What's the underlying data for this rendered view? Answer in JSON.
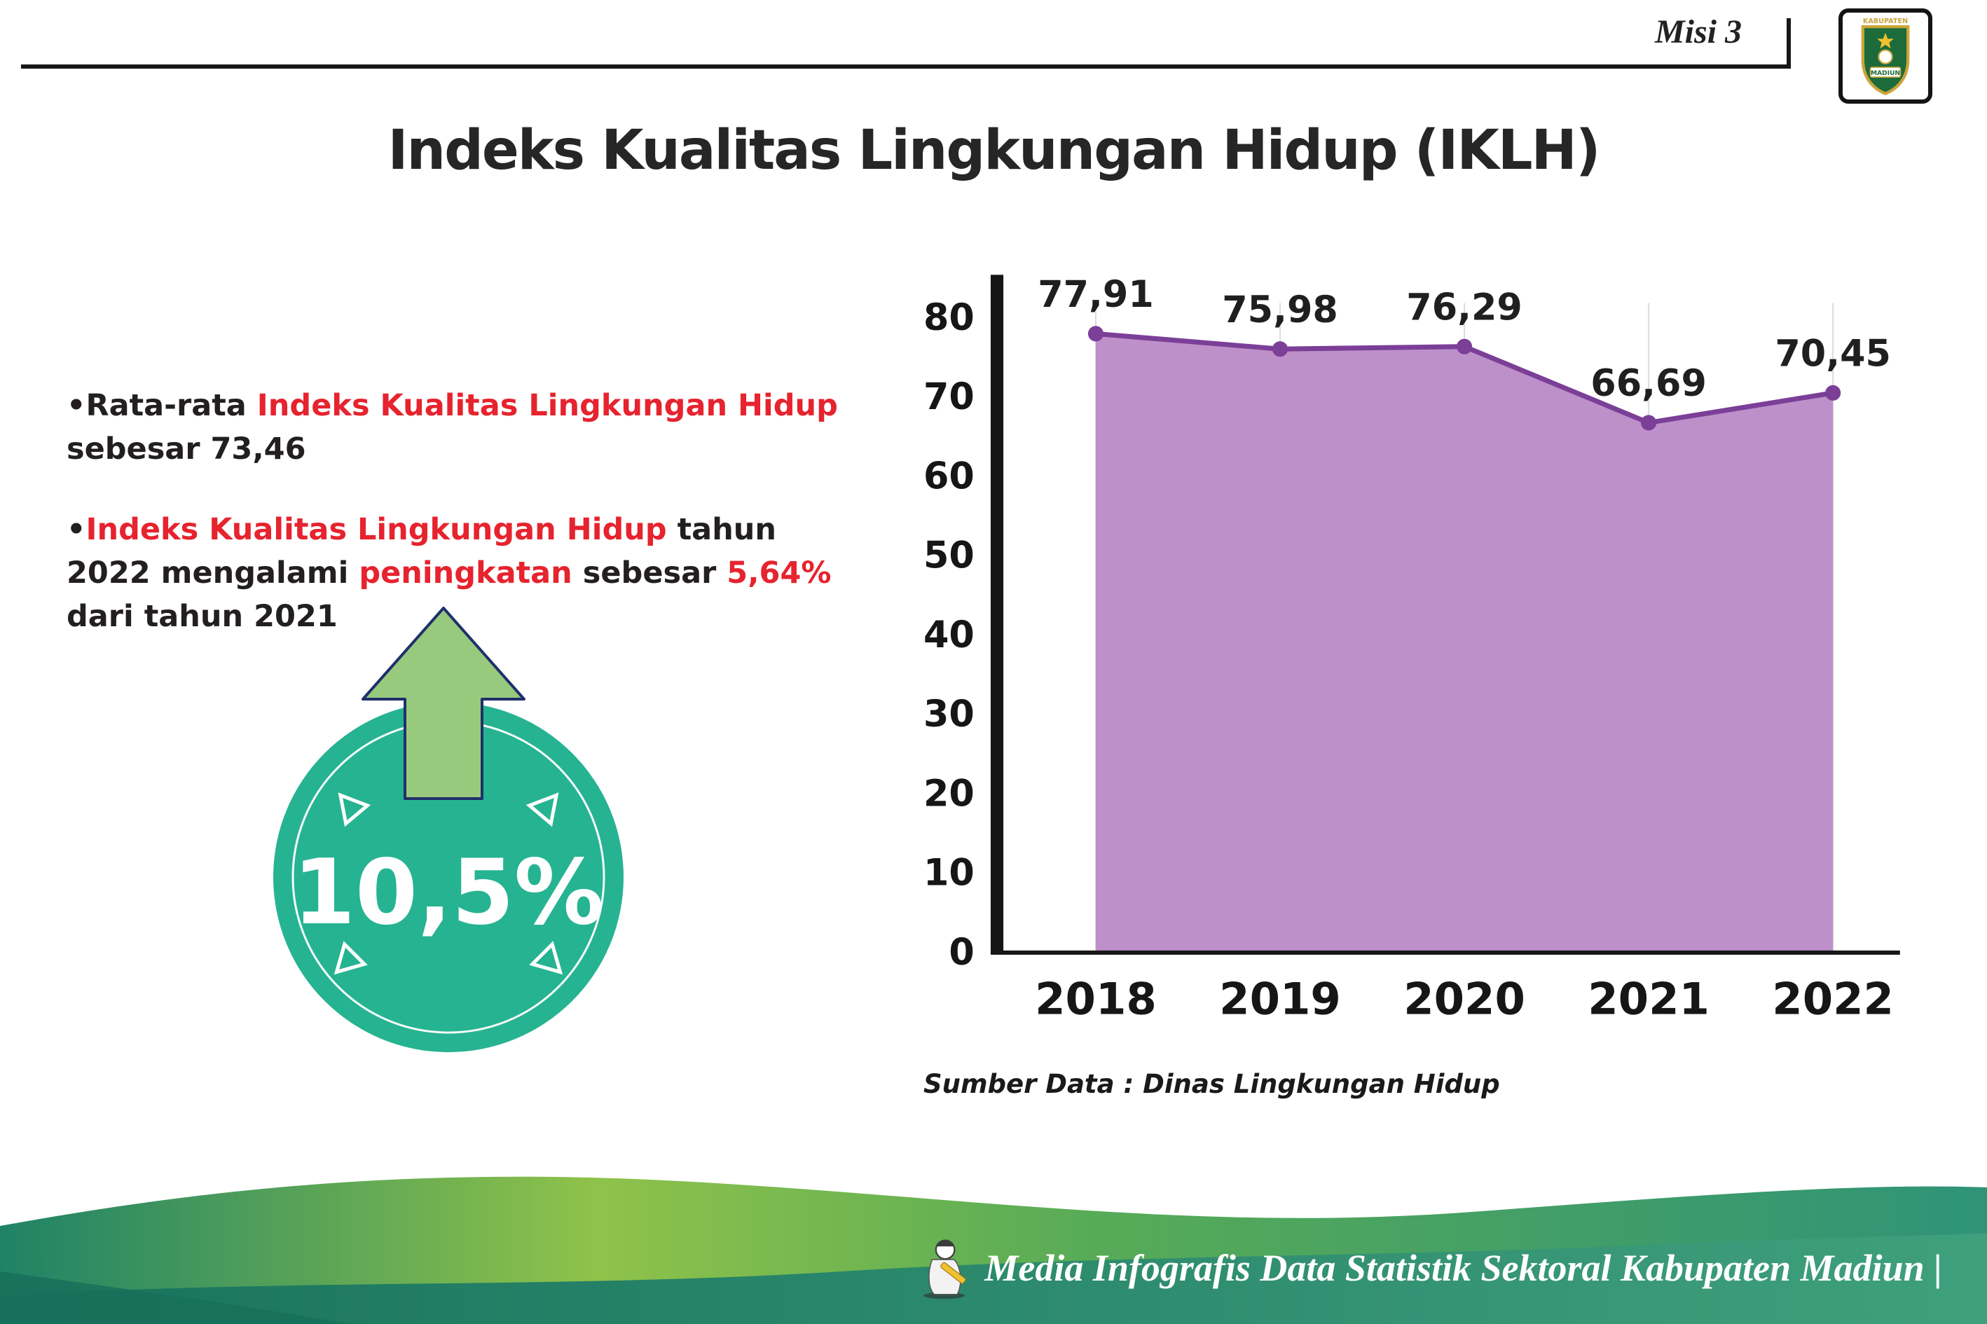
{
  "header": {
    "misi": "Misi 3",
    "title": "Indeks Kualitas Lingkungan Hidup (IKLH)",
    "logo": {
      "top_text": "KABUPATEN",
      "bottom_text": "MADIUN"
    }
  },
  "bullets": {
    "b1": {
      "bullet": "•",
      "s1": "Rata-rata ",
      "s2": "Indeks Kualitas Lingkungan Hidup",
      "s3": " sebesar 73,46"
    },
    "b2": {
      "bullet": "•",
      "s1": "Indeks Kualitas Lingkungan Hidup",
      "s2": " tahun 2022 mengalami ",
      "s3": "peningkatan",
      "s4": " sebesar ",
      "s5": "5,64%",
      "s6": " dari tahun 2021"
    }
  },
  "badge": {
    "value": "10,5%"
  },
  "colors": {
    "red_accent": "#e6232e",
    "badge_teal": "#26b391",
    "arrow_green": "#97ca7d",
    "footer_teal": "#2f9377",
    "footer_lime": "#8fc24a"
  },
  "chart_data": {
    "type": "area",
    "title": "",
    "xlabel": "",
    "ylabel": "",
    "categories": [
      "2018",
      "2019",
      "2020",
      "2021",
      "2022"
    ],
    "values": [
      77.91,
      75.98,
      76.29,
      66.69,
      70.45
    ],
    "point_labels": [
      "77,91",
      "75,98",
      "76,29",
      "66,69",
      "70,45"
    ],
    "ylim": [
      0,
      80
    ],
    "yticks": [
      0,
      10,
      20,
      30,
      40,
      50,
      60,
      70,
      80
    ],
    "grid": "vertical-light",
    "legend": "none",
    "colors": {
      "area": "#bd90c9",
      "line": "#7b3f98",
      "axis": "#161616",
      "grid": "#dcdcdc"
    },
    "source": "Sumber Data : Dinas Lingkungan Hidup"
  },
  "footer": {
    "credit": "Media Infografis Data Statistik Sektoral Kabupaten Madiun |"
  }
}
